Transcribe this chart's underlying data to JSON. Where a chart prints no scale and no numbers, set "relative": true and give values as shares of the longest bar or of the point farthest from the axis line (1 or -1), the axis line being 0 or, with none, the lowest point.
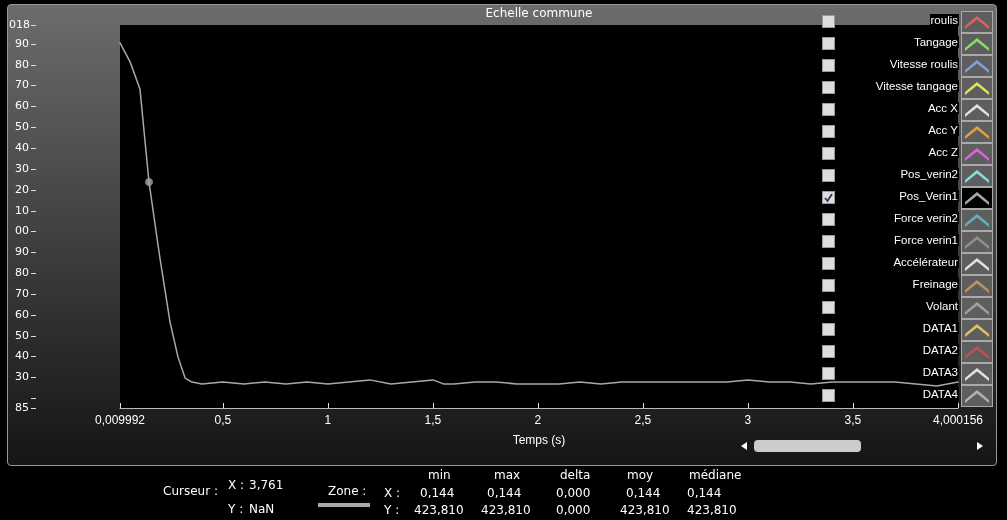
{
  "chart_data": {
    "type": "line",
    "title": "Echelle commune",
    "xlabel": "Temps (s)",
    "legend": "right",
    "grid": false,
    "relative": true,
    "xlim": [
      0.009992,
      4.000156
    ],
    "xticks": [
      {
        "value": 0.009992,
        "label": "0,009992"
      },
      {
        "value": 0.5,
        "label": "0,5"
      },
      {
        "value": 1,
        "label": "1"
      },
      {
        "value": 1.5,
        "label": "1,5"
      },
      {
        "value": 2,
        "label": "2"
      },
      {
        "value": 2.5,
        "label": "2,5"
      },
      {
        "value": 3,
        "label": "3"
      },
      {
        "value": 3.5,
        "label": "3,5"
      },
      {
        "value": 4.000156,
        "label": "4,000156"
      }
    ],
    "series": [
      {
        "name": "roulis",
        "color": "#e06060"
      },
      {
        "name": "Tangage",
        "color": "#80e060"
      },
      {
        "name": "Vitesse roulis",
        "color": "#80a0e0"
      },
      {
        "name": "Vitesse tangage",
        "color": "#e0e060"
      },
      {
        "name": "Acc X",
        "color": "#e0e0e0"
      },
      {
        "name": "Acc Y",
        "color": "#e0a040"
      },
      {
        "name": "Acc Z",
        "color": "#e060e0"
      },
      {
        "name": "Pos_verin2",
        "color": "#80e0e0"
      },
      {
        "name": "Pos_Verin1",
        "color": "#a8a8a8",
        "marker": "none",
        "line_style": "solid",
        "x": [
          0.01,
          0.058,
          0.105,
          0.148,
          0.2,
          0.248,
          0.286,
          0.32,
          0.353,
          0.4,
          0.5,
          0.6,
          0.7,
          0.8,
          0.9,
          1.0,
          1.1,
          1.2,
          1.3,
          1.4,
          1.5,
          1.55,
          1.6,
          1.7,
          1.8,
          1.9,
          2.0,
          2.1,
          2.2,
          2.3,
          2.4,
          2.5,
          2.6,
          2.7,
          2.8,
          2.9,
          3.0,
          3.1,
          3.2,
          3.3,
          3.4,
          3.5,
          3.6,
          3.7,
          3.8,
          3.9,
          4.0
        ],
        "values": [
          1,
          0.948,
          0.874,
          0.619,
          0.411,
          0.236,
          0.14,
          0.082,
          0.071,
          0.066,
          0.071,
          0.066,
          0.071,
          0.066,
          0.071,
          0.066,
          0.071,
          0.077,
          0.066,
          0.071,
          0.077,
          0.066,
          0.066,
          0.071,
          0.071,
          0.066,
          0.066,
          0.066,
          0.071,
          0.066,
          0.071,
          0.071,
          0.071,
          0.071,
          0.071,
          0.071,
          0.077,
          0.071,
          0.071,
          0.066,
          0.071,
          0.071,
          0.071,
          0.071,
          0.066,
          0.06,
          0.071
        ]
      },
      {
        "name": "Force verin2",
        "color": "#60b0c0"
      },
      {
        "name": "Force verin1",
        "color": "#909090"
      },
      {
        "name": "Accélérateur",
        "color": "#e0e0e0"
      },
      {
        "name": "Freinage",
        "color": "#c09060"
      },
      {
        "name": "Volant",
        "color": "#a0a0a0"
      },
      {
        "name": "DATA1",
        "color": "#e0c060"
      },
      {
        "name": "DATA2",
        "color": "#c05050"
      },
      {
        "name": "DATA3",
        "color": "#e0e0e0"
      },
      {
        "name": "DATA4",
        "color": "#b0b0b0"
      },
      {
        "type": "scatter",
        "color": "#a8a8a8",
        "marker": "circle",
        "x": [
          0.148
        ],
        "values": [
          0.619
        ]
      }
    ],
    "annotations": [
      "Curseur :",
      "X :",
      "3,761",
      "Y :",
      "NaN",
      "Zone :",
      "min",
      "max",
      "delta",
      "moy",
      "médiane",
      "X :",
      "0,144",
      "0,144",
      "0,000",
      "0,144",
      "0,144",
      "Y :",
      "423,810",
      "423,810",
      "0,000",
      "423,810",
      "423,810",
      "018",
      "90",
      "80",
      "70",
      "60",
      "50",
      "40",
      "30",
      "20",
      "10",
      "00",
      "90",
      "80",
      "70",
      "60",
      "50",
      "40",
      "30",
      "85"
    ]
  }
}
